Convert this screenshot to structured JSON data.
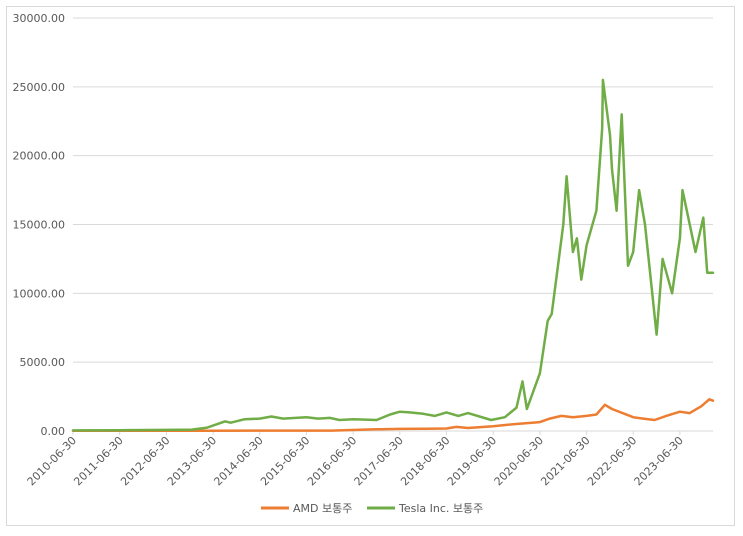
{
  "chart_data": {
    "type": "line",
    "title": "",
    "xlabel": "",
    "ylabel": "",
    "ylim": [
      0,
      30000
    ],
    "yticks": [
      "0.00",
      "5000.00",
      "10000.00",
      "15000.00",
      "20000.00",
      "25000.00",
      "30000.00"
    ],
    "xticks": [
      "2010-06-30",
      "2011-06-30",
      "2012-06-30",
      "2013-06-30",
      "2014-06-30",
      "2015-06-30",
      "2016-06-30",
      "2017-06-30",
      "2018-06-30",
      "2019-06-30",
      "2020-06-30",
      "2021-06-30",
      "2022-06-30",
      "2023-06-30"
    ],
    "grid": true,
    "legend_position": "bottom",
    "series": [
      {
        "name": "AMD 보통주",
        "color": "#ED7D31",
        "points": [
          [
            "2010-06-30",
            20
          ],
          [
            "2011-06-30",
            20
          ],
          [
            "2012-06-30",
            20
          ],
          [
            "2013-06-30",
            20
          ],
          [
            "2014-06-30",
            30
          ],
          [
            "2015-06-30",
            30
          ],
          [
            "2016-01-15",
            30
          ],
          [
            "2016-12-30",
            120
          ],
          [
            "2017-06-30",
            150
          ],
          [
            "2018-01-15",
            160
          ],
          [
            "2018-06-30",
            180
          ],
          [
            "2018-09-15",
            300
          ],
          [
            "2018-12-15",
            220
          ],
          [
            "2019-06-30",
            350
          ],
          [
            "2019-12-15",
            500
          ],
          [
            "2020-06-30",
            650
          ],
          [
            "2020-09-15",
            900
          ],
          [
            "2020-12-15",
            1100
          ],
          [
            "2021-03-15",
            1000
          ],
          [
            "2021-06-30",
            1100
          ],
          [
            "2021-09-15",
            1200
          ],
          [
            "2021-11-20",
            1900
          ],
          [
            "2022-01-15",
            1600
          ],
          [
            "2022-06-30",
            1000
          ],
          [
            "2022-09-15",
            900
          ],
          [
            "2022-12-15",
            800
          ],
          [
            "2023-03-15",
            1100
          ],
          [
            "2023-06-30",
            1400
          ],
          [
            "2023-09-15",
            1300
          ],
          [
            "2023-12-15",
            1800
          ],
          [
            "2024-02-15",
            2300
          ],
          [
            "2024-03-15",
            2200
          ]
        ]
      },
      {
        "name": "Tesla Inc. 보통주",
        "color": "#70AD47",
        "points": [
          [
            "2010-06-30",
            40
          ],
          [
            "2011-06-30",
            60
          ],
          [
            "2012-06-30",
            80
          ],
          [
            "2013-01-15",
            100
          ],
          [
            "2013-05-15",
            250
          ],
          [
            "2013-09-30",
            700
          ],
          [
            "2013-11-15",
            600
          ],
          [
            "2014-02-28",
            850
          ],
          [
            "2014-06-30",
            900
          ],
          [
            "2014-09-30",
            1050
          ],
          [
            "2014-12-30",
            900
          ],
          [
            "2015-06-30",
            1000
          ],
          [
            "2015-09-30",
            900
          ],
          [
            "2015-12-30",
            950
          ],
          [
            "2016-03-15",
            800
          ],
          [
            "2016-06-30",
            850
          ],
          [
            "2016-12-30",
            800
          ],
          [
            "2017-04-15",
            1200
          ],
          [
            "2017-06-30",
            1400
          ],
          [
            "2017-09-15",
            1350
          ],
          [
            "2017-12-30",
            1250
          ],
          [
            "2018-03-30",
            1100
          ],
          [
            "2018-06-30",
            1350
          ],
          [
            "2018-09-30",
            1100
          ],
          [
            "2018-12-15",
            1300
          ],
          [
            "2019-06-15",
            800
          ],
          [
            "2019-09-30",
            1000
          ],
          [
            "2019-12-30",
            1700
          ],
          [
            "2020-02-15",
            3600
          ],
          [
            "2020-03-20",
            1600
          ],
          [
            "2020-06-30",
            4200
          ],
          [
            "2020-08-30",
            8000
          ],
          [
            "2020-09-30",
            8500
          ],
          [
            "2020-12-30",
            15000
          ],
          [
            "2021-01-25",
            18500
          ],
          [
            "2021-03-15",
            13000
          ],
          [
            "2021-04-15",
            14000
          ],
          [
            "2021-05-20",
            11000
          ],
          [
            "2021-06-30",
            13500
          ],
          [
            "2021-09-15",
            16000
          ],
          [
            "2021-10-30",
            22000
          ],
          [
            "2021-11-05",
            25500
          ],
          [
            "2021-12-30",
            21500
          ],
          [
            "2022-01-15",
            19000
          ],
          [
            "2022-02-20",
            16000
          ],
          [
            "2022-04-01",
            23000
          ],
          [
            "2022-05-20",
            12000
          ],
          [
            "2022-06-30",
            13000
          ],
          [
            "2022-08-15",
            17500
          ],
          [
            "2022-09-30",
            15000
          ],
          [
            "2022-12-30",
            7000
          ],
          [
            "2023-02-15",
            12500
          ],
          [
            "2023-04-30",
            10000
          ],
          [
            "2023-06-30",
            14000
          ],
          [
            "2023-07-20",
            17500
          ],
          [
            "2023-10-30",
            13000
          ],
          [
            "2023-12-30",
            15500
          ],
          [
            "2024-01-30",
            11500
          ],
          [
            "2024-03-15",
            11500
          ]
        ]
      }
    ]
  }
}
